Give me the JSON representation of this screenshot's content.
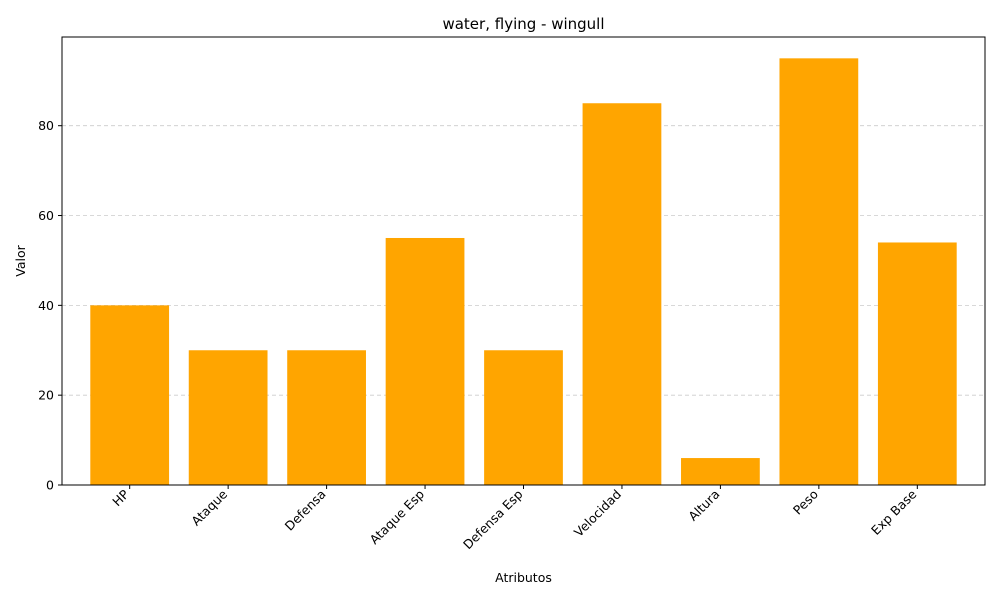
{
  "chart_data": {
    "type": "bar",
    "title": "water, flying - wingull",
    "xlabel": "Atributos",
    "ylabel": "Valor",
    "categories": [
      "HP",
      "Ataque",
      "Defensa",
      "Ataque Esp",
      "Defensa Esp",
      "Velocidad",
      "Altura",
      "Peso",
      "Exp Base"
    ],
    "values": [
      40,
      30,
      30,
      55,
      30,
      85,
      6,
      95,
      54
    ],
    "ylim": [
      0,
      99.75
    ],
    "yticks": [
      0,
      20,
      40,
      60,
      80
    ],
    "grid": "y-dashed",
    "bar_color": "#FFA500"
  }
}
